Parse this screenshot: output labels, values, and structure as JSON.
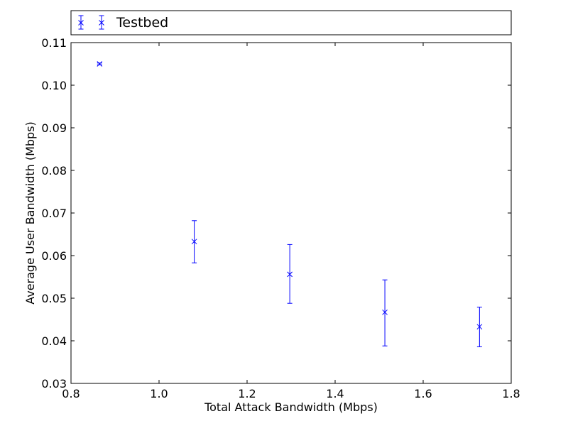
{
  "chart_data": {
    "type": "scatter",
    "title": "",
    "xlabel": "Total Attack Bandwidth (Mbps)",
    "ylabel": "Average User Bandwidth (Mbps)",
    "xlim": [
      0.8,
      1.8
    ],
    "ylim": [
      0.03,
      0.11
    ],
    "x_ticks": [
      "0.8",
      "1.0",
      "1.2",
      "1.4",
      "1.6",
      "1.8"
    ],
    "y_ticks": [
      "0.03",
      "0.04",
      "0.05",
      "0.06",
      "0.07",
      "0.08",
      "0.09",
      "0.10",
      "0.11"
    ],
    "grid": false,
    "legend_position": "top",
    "series": [
      {
        "name": "Testbed",
        "color": "#0000ff",
        "marker": "x",
        "points": [
          {
            "x": 0.865,
            "y": 0.105,
            "err_low": 0.1048,
            "err_high": 0.1052
          },
          {
            "x": 1.08,
            "y": 0.0633,
            "err_low": 0.0583,
            "err_high": 0.0682
          },
          {
            "x": 1.297,
            "y": 0.0556,
            "err_low": 0.0488,
            "err_high": 0.0626
          },
          {
            "x": 1.513,
            "y": 0.0467,
            "err_low": 0.0388,
            "err_high": 0.0543
          },
          {
            "x": 1.728,
            "y": 0.0433,
            "err_low": 0.0386,
            "err_high": 0.0479
          }
        ]
      }
    ]
  }
}
